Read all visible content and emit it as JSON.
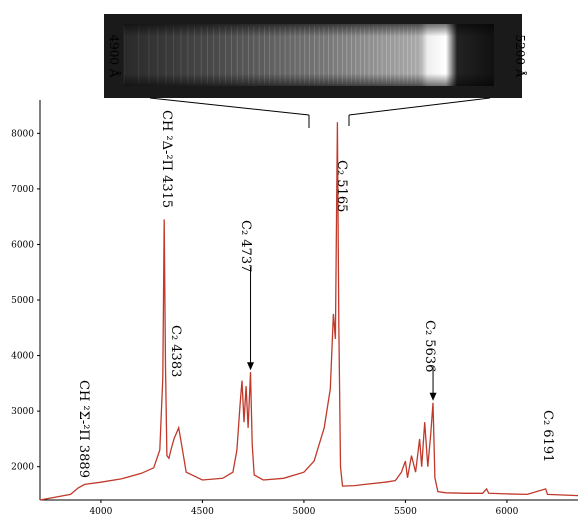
{
  "chart_data": {
    "type": "line",
    "title": "",
    "xlabel": "",
    "ylabel": "",
    "xlim": [
      3700,
      6350
    ],
    "ylim": [
      1400,
      8600
    ],
    "x_ticks": [
      4000,
      4500,
      5000,
      5500,
      6000
    ],
    "y_ticks": [
      2000,
      3000,
      4000,
      5000,
      6000,
      7000,
      8000
    ],
    "series": [
      {
        "color": "#c0392b",
        "points": [
          [
            3700,
            1400
          ],
          [
            3850,
            1500
          ],
          [
            3889,
            1620
          ],
          [
            3920,
            1680
          ],
          [
            4000,
            1720
          ],
          [
            4100,
            1780
          ],
          [
            4200,
            1880
          ],
          [
            4260,
            1980
          ],
          [
            4290,
            2300
          ],
          [
            4305,
            3600
          ],
          [
            4312,
            6450
          ],
          [
            4318,
            3800
          ],
          [
            4325,
            2200
          ],
          [
            4335,
            2150
          ],
          [
            4345,
            2300
          ],
          [
            4360,
            2500
          ],
          [
            4383,
            2700
          ],
          [
            4395,
            2450
          ],
          [
            4420,
            1900
          ],
          [
            4500,
            1760
          ],
          [
            4600,
            1790
          ],
          [
            4650,
            1900
          ],
          [
            4670,
            2300
          ],
          [
            4685,
            3100
          ],
          [
            4695,
            3550
          ],
          [
            4705,
            2800
          ],
          [
            4715,
            3450
          ],
          [
            4725,
            2700
          ],
          [
            4737,
            3700
          ],
          [
            4745,
            2400
          ],
          [
            4755,
            1850
          ],
          [
            4800,
            1760
          ],
          [
            4900,
            1790
          ],
          [
            5000,
            1900
          ],
          [
            5050,
            2100
          ],
          [
            5100,
            2700
          ],
          [
            5130,
            3400
          ],
          [
            5145,
            4750
          ],
          [
            5155,
            4300
          ],
          [
            5165,
            8200
          ],
          [
            5172,
            4600
          ],
          [
            5180,
            2000
          ],
          [
            5190,
            1650
          ],
          [
            5250,
            1660
          ],
          [
            5300,
            1680
          ],
          [
            5400,
            1720
          ],
          [
            5450,
            1750
          ],
          [
            5480,
            1900
          ],
          [
            5500,
            2100
          ],
          [
            5510,
            1800
          ],
          [
            5530,
            2200
          ],
          [
            5550,
            1900
          ],
          [
            5570,
            2500
          ],
          [
            5580,
            2000
          ],
          [
            5595,
            2800
          ],
          [
            5610,
            2000
          ],
          [
            5625,
            2600
          ],
          [
            5636,
            3150
          ],
          [
            5645,
            1800
          ],
          [
            5660,
            1550
          ],
          [
            5700,
            1530
          ],
          [
            5800,
            1520
          ],
          [
            5880,
            1520
          ],
          [
            5900,
            1600
          ],
          [
            5910,
            1520
          ],
          [
            6000,
            1510
          ],
          [
            6100,
            1500
          ],
          [
            6191,
            1600
          ],
          [
            6200,
            1500
          ],
          [
            6350,
            1480
          ]
        ]
      }
    ],
    "annotations": [
      {
        "text": "CH ²Σ-²Π 3889",
        "x": 3889,
        "rotated": true,
        "arrow": false
      },
      {
        "text": "CH ²Δ-²Π 4315",
        "x": 4315,
        "rotated": true,
        "arrow": false
      },
      {
        "text": "C₂ 4383",
        "x": 4383,
        "rotated": true,
        "arrow": false
      },
      {
        "text": "C₂ 4737",
        "x": 4737,
        "rotated": true,
        "arrow": true,
        "arrow_tip_y": 3700
      },
      {
        "text": "C₂ 5165",
        "x": 5165,
        "rotated": true,
        "arrow": false
      },
      {
        "text": "C₂ 5636",
        "x": 5636,
        "rotated": true,
        "arrow": true,
        "arrow_tip_y": 3150
      },
      {
        "text": "C₂ 6191",
        "x": 6191,
        "rotated": true,
        "arrow": false
      }
    ],
    "inset": {
      "type": "spectrum_image",
      "left_label": "4900 Å",
      "right_label": "5200 Å",
      "range": [
        4900,
        5200
      ]
    }
  }
}
